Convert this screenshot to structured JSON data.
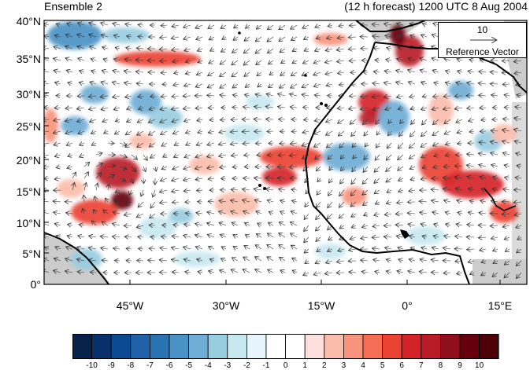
{
  "header": {
    "left_title": "Ensemble 2",
    "right_title": "(12 h forecast) 1200 UTC 8 Aug 2004"
  },
  "map": {
    "y_ticks": [
      "40°N",
      "35°N",
      "30°N",
      "25°N",
      "20°N",
      "15°N",
      "10°N",
      "5°N",
      "0°"
    ],
    "x_ticks": [
      "45°W",
      "30°W",
      "15°W",
      "0°",
      "15°E"
    ],
    "land_mask_color": "#cccccc",
    "coastline_color": "#000000"
  },
  "reference_vector": {
    "magnitude": "10",
    "label": "Reference Vector"
  },
  "colorbar": {
    "labels": [
      "-10",
      "-9",
      "-8",
      "-7",
      "-6",
      "-5",
      "-4",
      "-3",
      "-2",
      "-1",
      "0",
      "1",
      "2",
      "3",
      "4",
      "5",
      "6",
      "7",
      "8",
      "9",
      "10"
    ],
    "colors": [
      "#06214a",
      "#08306b",
      "#0b4a93",
      "#1f62a9",
      "#2a73b3",
      "#4a92c6",
      "#6fadd5",
      "#98ccdf",
      "#c8e8f0",
      "#e6f5fb",
      "#ffffff",
      "#ffffff",
      "#fde0dd",
      "#fbbdab",
      "#f9937d",
      "#f56d55",
      "#ea4234",
      "#d42328",
      "#b81b26",
      "#8f0f1c",
      "#67000d",
      "#4d0008"
    ]
  }
}
